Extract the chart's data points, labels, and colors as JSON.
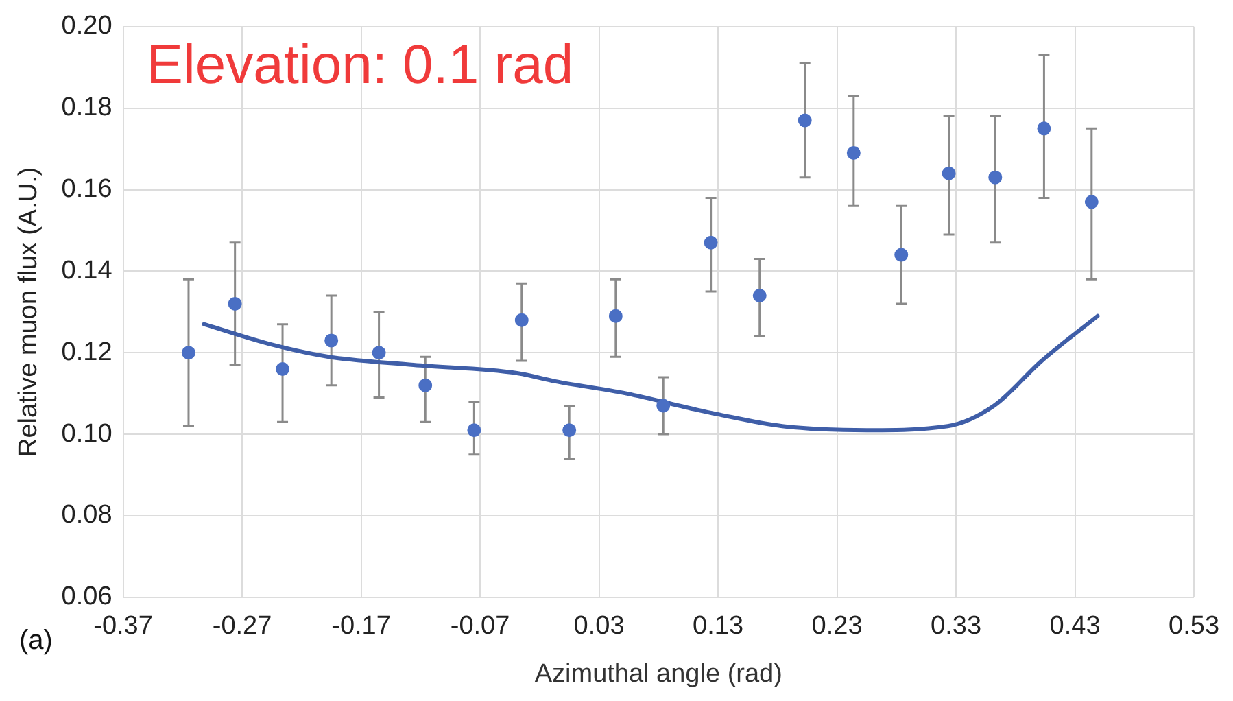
{
  "chart_data": {
    "type": "scatter",
    "xlabel": "Azimuthal angle (rad)",
    "ylabel": "Relative muon flux (A.U.)",
    "annotations": [
      "Elevation: 0.1 rad",
      "(a)"
    ],
    "xlim": [
      -0.37,
      0.53
    ],
    "xticks": [
      -0.37,
      -0.27,
      -0.17,
      -0.07,
      0.03,
      0.13,
      0.23,
      0.33,
      0.43,
      0.53
    ],
    "ylim": [
      0.06,
      0.2
    ],
    "yticks": [
      0.06,
      0.08,
      {
        "value": 0.1,
        "label": "0.10"
      },
      0.12,
      0.14,
      0.16,
      0.18,
      {
        "value": 0.2,
        "label": "0.20"
      }
    ],
    "grid": true,
    "legend": false,
    "series": [
      {
        "marker": "circle",
        "color": "#4a6fc4",
        "x": [
          -0.315,
          -0.276,
          -0.236,
          -0.195,
          -0.155,
          -0.116,
          -0.075,
          -0.035,
          0.005,
          0.044,
          0.084,
          0.124,
          0.165,
          0.203,
          0.244,
          0.284,
          0.324,
          0.363,
          0.404,
          0.444
        ],
        "values": [
          0.12,
          0.132,
          0.116,
          0.123,
          0.12,
          0.112,
          0.101,
          0.128,
          0.101,
          0.129,
          0.107,
          0.147,
          0.134,
          0.177,
          0.169,
          0.144,
          0.164,
          0.163,
          0.175,
          0.157
        ],
        "errors": [
          [
            0.102,
            0.138
          ],
          [
            0.117,
            0.147
          ],
          [
            0.103,
            0.127
          ],
          [
            0.112,
            0.134
          ],
          [
            0.109,
            0.13
          ],
          [
            0.103,
            0.119
          ],
          [
            0.095,
            0.108
          ],
          [
            0.118,
            0.137
          ],
          [
            0.094,
            0.107
          ],
          [
            0.119,
            0.138
          ],
          [
            0.1,
            0.114
          ],
          [
            0.135,
            0.158
          ],
          [
            0.124,
            0.143
          ],
          [
            0.163,
            0.191
          ],
          [
            0.156,
            0.183
          ],
          [
            0.132,
            0.156
          ],
          [
            0.149,
            0.178
          ],
          [
            0.147,
            0.178
          ],
          [
            0.158,
            0.193
          ],
          [
            0.138,
            0.175
          ]
        ]
      },
      {
        "type": "line",
        "color": "#3f5ea8",
        "line_style": "solid",
        "x": [
          -0.302,
          -0.245,
          -0.197,
          -0.126,
          -0.039,
          -0.007,
          0.053,
          0.112,
          0.128,
          0.184,
          0.255,
          0.323,
          0.362,
          0.402,
          0.449
        ],
        "values": [
          0.127,
          0.122,
          0.119,
          0.117,
          0.115,
          0.113,
          0.11,
          0.106,
          0.105,
          0.102,
          0.101,
          0.102,
          0.107,
          0.118,
          0.129
        ]
      }
    ]
  }
}
